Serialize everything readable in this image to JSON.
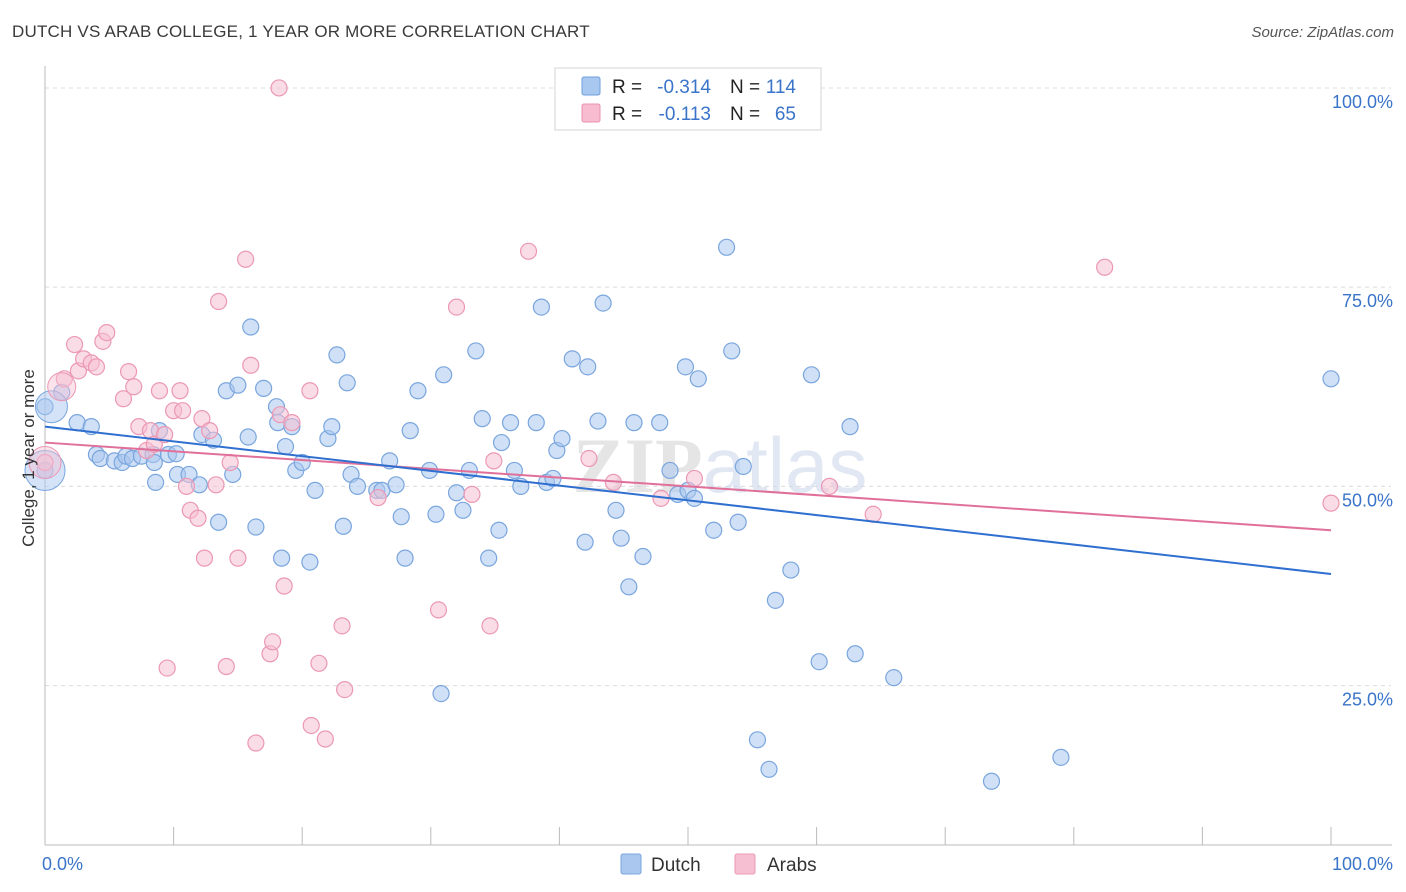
{
  "title": "DUTCH VS ARAB COLLEGE, 1 YEAR OR MORE CORRELATION CHART",
  "source": "Source: ZipAtlas.com",
  "watermark": "ZIPatlas",
  "legend_top": [
    {
      "r_label": "R =",
      "r_value": "-0.314",
      "n_label": "N =",
      "n_value": "114",
      "color": "#a8c8f0",
      "stroke": "#6f9fdc"
    },
    {
      "r_label": "R =",
      "r_value": "-0.113",
      "n_label": "N =",
      "n_value": "65",
      "color": "#f7bcd0",
      "stroke": "#e890ad"
    }
  ],
  "colors": {
    "dutch_fill": "#a9c7ef",
    "dutch_stroke": "#7aa6de",
    "dutch_line": "#2f6fd0",
    "arabs_fill": "#f6bfd2",
    "arabs_stroke": "#eb98b4",
    "arabs_line": "#e0709a",
    "accent_text": "#3a74c9"
  },
  "chart_data": {
    "type": "scatter",
    "title": "DUTCH VS ARAB COLLEGE, 1 YEAR OR MORE CORRELATION CHART",
    "xlabel": "",
    "ylabel": "College, 1 year or more",
    "xlim": [
      0,
      100
    ],
    "ylim": [
      5,
      102
    ],
    "x_tick_labels": [
      "0.0%",
      "100.0%"
    ],
    "y_ticks": [
      25,
      50,
      75,
      100
    ],
    "y_tick_labels": [
      "25.0%",
      "50.0%",
      "75.0%",
      "100.0%"
    ],
    "grid": true,
    "legend_placement": "bottom-center",
    "series": [
      {
        "name": "Dutch",
        "trend": {
          "x": [
            0,
            100
          ],
          "y": [
            57.5,
            39.0
          ]
        },
        "points": [
          [
            0,
            52
          ],
          [
            0,
            60
          ],
          [
            1.3,
            61.8
          ],
          [
            2.5,
            58
          ],
          [
            3.6,
            57.5
          ],
          [
            4,
            54
          ],
          [
            4.3,
            53.5
          ],
          [
            5.4,
            53.2
          ],
          [
            6,
            53
          ],
          [
            6.3,
            53.8
          ],
          [
            6.8,
            53.5
          ],
          [
            7.5,
            53.8
          ],
          [
            8.4,
            54
          ],
          [
            8.5,
            53
          ],
          [
            8.6,
            50.5
          ],
          [
            8.9,
            57
          ],
          [
            9.6,
            54
          ],
          [
            10.2,
            54.1
          ],
          [
            10.3,
            51.5
          ],
          [
            11.2,
            51.5
          ],
          [
            12,
            50.2
          ],
          [
            12.2,
            56.5
          ],
          [
            13.1,
            55.8
          ],
          [
            13.5,
            45.5
          ],
          [
            14.1,
            62
          ],
          [
            14.6,
            51.5
          ],
          [
            15,
            62.7
          ],
          [
            15.8,
            56.2
          ],
          [
            16,
            70
          ],
          [
            16.4,
            44.9
          ],
          [
            17,
            62.3
          ],
          [
            18,
            60
          ],
          [
            18.1,
            58
          ],
          [
            18.4,
            41
          ],
          [
            18.7,
            55
          ],
          [
            19.2,
            57.5
          ],
          [
            19.5,
            52
          ],
          [
            20,
            53
          ],
          [
            20.6,
            40.5
          ],
          [
            21,
            49.5
          ],
          [
            22,
            56
          ],
          [
            22.3,
            57.5
          ],
          [
            22.7,
            66.5
          ],
          [
            23.2,
            45
          ],
          [
            23.5,
            63
          ],
          [
            23.8,
            51.5
          ],
          [
            24.3,
            50
          ],
          [
            25.8,
            49.5
          ],
          [
            26.2,
            49.5
          ],
          [
            26.8,
            53.2
          ],
          [
            27.3,
            50.2
          ],
          [
            27.7,
            46.2
          ],
          [
            28,
            41
          ],
          [
            28.4,
            57
          ],
          [
            29,
            62
          ],
          [
            29.9,
            52
          ],
          [
            30.4,
            46.5
          ],
          [
            30.8,
            24
          ],
          [
            31,
            64
          ],
          [
            32,
            49.2
          ],
          [
            32.5,
            47
          ],
          [
            33,
            52
          ],
          [
            33.5,
            67
          ],
          [
            34,
            58.5
          ],
          [
            34.5,
            41
          ],
          [
            35.3,
            44.5
          ],
          [
            35.5,
            55.5
          ],
          [
            36.2,
            58
          ],
          [
            36.5,
            52
          ],
          [
            37,
            50
          ],
          [
            38.2,
            58
          ],
          [
            38.6,
            72.5
          ],
          [
            39,
            50.5
          ],
          [
            39.5,
            51
          ],
          [
            39.8,
            54.5
          ],
          [
            40.2,
            56
          ],
          [
            41,
            66
          ],
          [
            42,
            43
          ],
          [
            42.2,
            65
          ],
          [
            43,
            58.2
          ],
          [
            43.4,
            73
          ],
          [
            44.4,
            47
          ],
          [
            44.8,
            43.5
          ],
          [
            45.4,
            37.4
          ],
          [
            45.8,
            58
          ],
          [
            46.5,
            41.2
          ],
          [
            47.8,
            58
          ],
          [
            48.6,
            52
          ],
          [
            49.2,
            49
          ],
          [
            49.8,
            65
          ],
          [
            50,
            49.5
          ],
          [
            50.5,
            48.5
          ],
          [
            50.8,
            63.5
          ],
          [
            52,
            44.5
          ],
          [
            53,
            80
          ],
          [
            53.4,
            67
          ],
          [
            53.9,
            45.5
          ],
          [
            54.3,
            52.5
          ],
          [
            55.4,
            18.2
          ],
          [
            56.3,
            14.5
          ],
          [
            56.8,
            35.7
          ],
          [
            58,
            39.5
          ],
          [
            59.6,
            64
          ],
          [
            60.2,
            28
          ],
          [
            62.6,
            57.5
          ],
          [
            63,
            29
          ],
          [
            66,
            26
          ],
          [
            73.6,
            13
          ],
          [
            79,
            16
          ],
          [
            100,
            63.5
          ]
        ]
      },
      {
        "name": "Arabs",
        "trend": {
          "x": [
            0,
            100
          ],
          "y": [
            55.5,
            44.5
          ]
        },
        "points": [
          [
            0,
            53
          ],
          [
            1.5,
            63.5
          ],
          [
            2.3,
            67.8
          ],
          [
            2.6,
            64.5
          ],
          [
            3,
            66
          ],
          [
            3.6,
            65.5
          ],
          [
            4,
            65
          ],
          [
            4.5,
            68.2
          ],
          [
            4.8,
            69.3
          ],
          [
            6.1,
            61
          ],
          [
            6.5,
            64.4
          ],
          [
            6.9,
            62.5
          ],
          [
            7.3,
            57.5
          ],
          [
            7.9,
            54.5
          ],
          [
            8.2,
            57
          ],
          [
            8.5,
            55.3
          ],
          [
            8.9,
            62
          ],
          [
            9.3,
            56.5
          ],
          [
            9.5,
            27.2
          ],
          [
            10,
            59.5
          ],
          [
            10.5,
            62
          ],
          [
            10.7,
            59.5
          ],
          [
            11,
            50
          ],
          [
            11.3,
            47
          ],
          [
            11.9,
            46
          ],
          [
            12.2,
            58.5
          ],
          [
            12.4,
            41
          ],
          [
            12.8,
            57
          ],
          [
            13.3,
            50.2
          ],
          [
            13.5,
            73.2
          ],
          [
            14.1,
            27.4
          ],
          [
            14.4,
            53
          ],
          [
            15,
            41
          ],
          [
            15.6,
            78.5
          ],
          [
            16,
            65.2
          ],
          [
            16.4,
            17.8
          ],
          [
            17.5,
            29
          ],
          [
            17.7,
            30.5
          ],
          [
            18.2,
            100
          ],
          [
            18.3,
            59
          ],
          [
            18.6,
            37.5
          ],
          [
            19.2,
            58
          ],
          [
            20.6,
            62
          ],
          [
            20.7,
            20
          ],
          [
            21.3,
            27.8
          ],
          [
            21.8,
            18.3
          ],
          [
            23.1,
            32.5
          ],
          [
            23.3,
            24.5
          ],
          [
            25.9,
            48.6
          ],
          [
            30.6,
            34.5
          ],
          [
            32,
            72.5
          ],
          [
            33.2,
            49
          ],
          [
            34.6,
            32.5
          ],
          [
            34.9,
            53.2
          ],
          [
            37.6,
            79.5
          ],
          [
            42.3,
            53.5
          ],
          [
            44.2,
            50.5
          ],
          [
            47.9,
            48.5
          ],
          [
            50.5,
            51
          ],
          [
            61,
            50
          ],
          [
            64.4,
            46.5
          ],
          [
            82.4,
            77.5
          ],
          [
            100,
            47.9
          ]
        ]
      }
    ]
  }
}
